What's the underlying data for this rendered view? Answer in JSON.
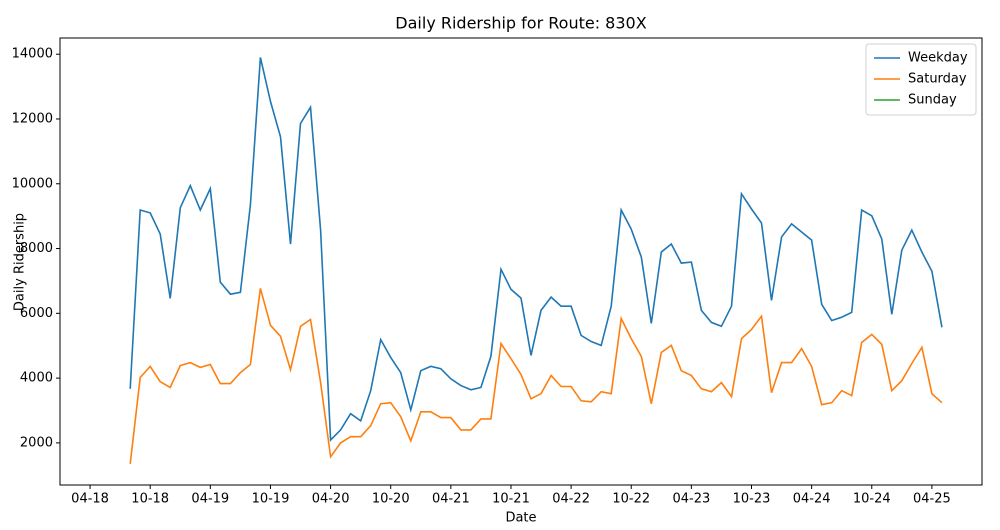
{
  "chart_data": {
    "type": "line",
    "title": "Daily Ridership for Route: 830X",
    "x_label": "Date",
    "y_label": "Daily Ridership",
    "x": [
      "2018-08",
      "2018-09",
      "2018-10",
      "2018-11",
      "2018-12",
      "2019-01",
      "2019-02",
      "2019-03",
      "2019-04",
      "2019-05",
      "2019-06",
      "2019-07",
      "2019-08",
      "2019-09",
      "2019-10",
      "2019-11",
      "2019-12",
      "2020-01",
      "2020-02",
      "2020-03",
      "2020-04",
      "2020-05",
      "2020-06",
      "2020-07",
      "2020-08",
      "2020-09",
      "2020-10",
      "2020-11",
      "2020-12",
      "2021-01",
      "2021-02",
      "2021-03",
      "2021-04",
      "2021-05",
      "2021-06",
      "2021-07",
      "2021-08",
      "2021-09",
      "2021-10",
      "2021-11",
      "2021-12",
      "2022-01",
      "2022-02",
      "2022-03",
      "2022-04",
      "2022-05",
      "2022-06",
      "2022-07",
      "2022-08",
      "2022-09",
      "2022-10",
      "2022-11",
      "2022-12",
      "2023-01",
      "2023-02",
      "2023-03",
      "2023-04",
      "2023-05",
      "2023-06",
      "2023-07",
      "2023-08",
      "2023-09",
      "2023-10",
      "2023-11",
      "2023-12",
      "2024-01",
      "2024-02",
      "2024-03",
      "2024-04",
      "2024-05",
      "2024-06",
      "2024-07",
      "2024-08",
      "2024-09",
      "2024-10",
      "2024-11",
      "2024-12",
      "2025-01",
      "2025-02",
      "2025-03",
      "2025-04",
      "2025-05"
    ],
    "series": [
      {
        "name": "Weekday",
        "color": "#1f77b4",
        "values": [
          3670,
          9190,
          9100,
          8450,
          6460,
          9260,
          9940,
          9190,
          9850,
          6960,
          6590,
          6650,
          9350,
          13900,
          12540,
          11450,
          8140,
          11860,
          12360,
          8570,
          2090,
          2400,
          2900,
          2680,
          3610,
          5190,
          4640,
          4170,
          3020,
          4230,
          4360,
          4290,
          3980,
          3770,
          3640,
          3710,
          4670,
          7360,
          6740,
          6470,
          4700,
          6090,
          6500,
          6220,
          6220,
          5320,
          5130,
          5010,
          6220,
          9190,
          8600,
          7740,
          5690,
          7890,
          8140,
          7550,
          7580,
          6090,
          5720,
          5600,
          6220,
          9690,
          9220,
          8790,
          6400,
          8360,
          8760,
          8510,
          8260,
          6280,
          5780,
          5880,
          6030,
          9190,
          9010,
          8290,
          5970,
          7950,
          8570,
          7890,
          7300,
          5570
        ]
      },
      {
        "name": "Saturday",
        "color": "#ff7f0e",
        "values": [
          1350,
          4020,
          4360,
          3890,
          3710,
          4390,
          4480,
          4330,
          4420,
          3830,
          3830,
          4170,
          4420,
          6770,
          5630,
          5290,
          4260,
          5600,
          5810,
          3860,
          1570,
          2000,
          2190,
          2190,
          2530,
          3210,
          3240,
          2810,
          2060,
          2960,
          2960,
          2780,
          2780,
          2400,
          2400,
          2740,
          2740,
          5070,
          4600,
          4110,
          3360,
          3520,
          4080,
          3740,
          3740,
          3300,
          3270,
          3580,
          3520,
          5840,
          5220,
          4670,
          3210,
          4790,
          5010,
          4230,
          4080,
          3670,
          3580,
          3860,
          3430,
          5220,
          5500,
          5910,
          3550,
          4480,
          4480,
          4910,
          4360,
          3180,
          3240,
          3610,
          3460,
          5100,
          5350,
          5040,
          3610,
          3920,
          4450,
          4950,
          3520,
          3240
        ]
      },
      {
        "name": "Sunday",
        "color": "#2ca02c",
        "values": [
          null,
          null,
          null,
          null,
          null,
          null,
          null,
          null,
          null,
          null,
          null,
          null,
          null,
          null,
          null,
          null,
          null,
          null,
          null,
          null,
          null,
          null,
          null,
          null,
          null,
          null,
          null,
          null,
          null,
          null,
          null,
          null,
          null,
          null,
          null,
          null,
          null,
          null,
          null,
          null,
          null,
          null,
          null,
          null,
          null,
          null,
          null,
          null,
          null,
          null,
          null,
          null,
          null,
          null,
          null,
          null,
          null,
          null,
          null,
          null,
          null,
          null,
          null,
          null,
          null,
          null,
          null,
          null,
          null,
          null,
          null,
          null,
          null,
          null,
          null,
          null,
          null,
          null,
          null,
          null,
          null,
          null
        ]
      }
    ],
    "xlim": [
      "2018-01",
      "2025-09"
    ],
    "xticks": [
      {
        "value": "2018-04",
        "label": "04-18"
      },
      {
        "value": "2018-10",
        "label": "10-18"
      },
      {
        "value": "2019-04",
        "label": "04-19"
      },
      {
        "value": "2019-10",
        "label": "10-19"
      },
      {
        "value": "2020-04",
        "label": "04-20"
      },
      {
        "value": "2020-10",
        "label": "10-20"
      },
      {
        "value": "2021-04",
        "label": "04-21"
      },
      {
        "value": "2021-10",
        "label": "10-21"
      },
      {
        "value": "2022-04",
        "label": "04-22"
      },
      {
        "value": "2022-10",
        "label": "10-22"
      },
      {
        "value": "2023-04",
        "label": "04-23"
      },
      {
        "value": "2023-10",
        "label": "10-23"
      },
      {
        "value": "2024-04",
        "label": "04-24"
      },
      {
        "value": "2024-10",
        "label": "10-24"
      },
      {
        "value": "2025-04",
        "label": "04-25"
      }
    ],
    "ylim": [
      700,
      14500
    ],
    "yticks": [
      2000,
      4000,
      6000,
      8000,
      10000,
      12000,
      14000
    ],
    "legend": "upper right",
    "grid": false
  }
}
